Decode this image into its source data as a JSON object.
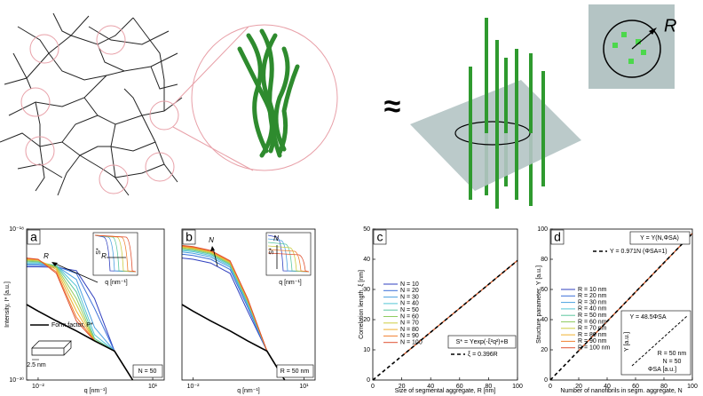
{
  "illustration": {
    "approx": "≈",
    "inset_label": "R"
  },
  "chart_data": [
    {
      "type": "line",
      "panel": "a",
      "log_x": true,
      "log_y": true,
      "x_label": "q [nm⁻¹]",
      "y_label": "Intensity, I* [a.u.]",
      "xlim": [
        0.005,
        20
      ],
      "ylim": [
        1e-30,
        1e-18
      ],
      "xticks": [
        {
          "value": 0.01,
          "label": "10⁻²"
        },
        {
          "value": 10,
          "label": "10¹"
        }
      ],
      "yticks": [
        {
          "value": 1e-30,
          "label": "10⁻³⁰"
        },
        {
          "value": 1e-18,
          "label": "10⁻¹⁸"
        }
      ],
      "x": [
        0.005,
        0.01,
        0.03,
        0.1,
        0.3,
        1,
        3
      ],
      "series": [
        {
          "color": "#2f3fbf",
          "values": [
            1e-21,
            1e-21,
            9e-22,
            5e-22,
            3e-24,
            2e-28,
            1e-30
          ]
        },
        {
          "color": "#3a6fd8",
          "values": [
            1.3e-21,
            1.3e-21,
            1.1e-21,
            3e-22,
            5e-25,
            2e-28,
            1e-30
          ]
        },
        {
          "color": "#4aa0e0",
          "values": [
            1.6e-21,
            1.6e-21,
            1.2e-21,
            1e-22,
            1.5e-26,
            2e-28,
            1e-30
          ]
        },
        {
          "color": "#52c4d4",
          "values": [
            2e-21,
            2e-21,
            1.3e-21,
            3e-23,
            4e-27,
            2e-28,
            1e-30
          ]
        },
        {
          "color": "#5cc8a0",
          "values": [
            2.5e-21,
            2.4e-21,
            1.2e-21,
            1e-23,
            2e-27,
            2e-28,
            1e-30
          ]
        },
        {
          "color": "#90cc60",
          "values": [
            3e-21,
            2.8e-21,
            1e-21,
            3e-24,
            1.5e-27,
            2e-28,
            1e-30
          ]
        },
        {
          "color": "#cccc40",
          "values": [
            3.5e-21,
            3.2e-21,
            8e-22,
            1e-24,
            1.3e-27,
            2e-28,
            1e-30
          ]
        },
        {
          "color": "#f0b030",
          "values": [
            4e-21,
            3.5e-21,
            6e-22,
            3e-25,
            1.3e-27,
            2e-28,
            1e-30
          ]
        },
        {
          "color": "#f08030",
          "values": [
            4.5e-21,
            3.8e-21,
            4e-22,
            1e-25,
            1.3e-27,
            2e-28,
            1e-30
          ]
        },
        {
          "color": "#e05030",
          "values": [
            5e-21,
            4e-21,
            3e-22,
            5e-26,
            1.3e-27,
            2e-28,
            1e-30
          ]
        },
        {
          "color": "#000000",
          "values": [
            1e-24,
            3e-25,
            5e-26,
            8e-27,
            1.3e-27,
            2e-28,
            1e-30
          ]
        }
      ],
      "annotations": [
        "Form factor, P*",
        "2.5 nm",
        "N = 50",
        "R",
        "S*",
        "q [nm⁻¹]",
        "R"
      ]
    },
    {
      "type": "line",
      "panel": "b",
      "log_x": true,
      "log_y": true,
      "x_label": "q [nm⁻¹]",
      "xlim": [
        0.005,
        20
      ],
      "ylim": [
        1e-30,
        1e-18
      ],
      "xticks": [
        {
          "value": 0.01,
          "label": "10⁻²"
        },
        {
          "value": 10,
          "label": "10¹"
        }
      ],
      "x": [
        0.005,
        0.01,
        0.03,
        0.1,
        0.3,
        1,
        3
      ],
      "series": [
        {
          "color": "#2f3fbf",
          "values": [
            5e-21,
            4e-21,
            2e-21,
            3e-22,
            3e-25,
            2e-28,
            1e-30
          ]
        },
        {
          "color": "#3a6fd8",
          "values": [
            1e-20,
            8e-21,
            4e-21,
            6e-22,
            6e-25,
            2e-28,
            1e-30
          ]
        },
        {
          "color": "#4aa0e0",
          "values": [
            1.5e-20,
            1.2e-20,
            6e-21,
            9e-22,
            9e-25,
            2e-28,
            1e-30
          ]
        },
        {
          "color": "#52c4d4",
          "values": [
            2e-20,
            1.6e-20,
            8e-21,
            1.2e-21,
            1.2e-24,
            2e-28,
            1e-30
          ]
        },
        {
          "color": "#5cc8a0",
          "values": [
            2.5e-20,
            2e-20,
            1e-20,
            1.5e-21,
            1.5e-24,
            2e-28,
            1e-30
          ]
        },
        {
          "color": "#90cc60",
          "values": [
            3e-20,
            2.4e-20,
            1.2e-20,
            1.8e-21,
            1.8e-24,
            2e-28,
            1e-30
          ]
        },
        {
          "color": "#cccc40",
          "values": [
            3.5e-20,
            2.8e-20,
            1.4e-20,
            2.1e-21,
            2.1e-24,
            2e-28,
            1e-30
          ]
        },
        {
          "color": "#f0b030",
          "values": [
            4e-20,
            3.2e-20,
            1.6e-20,
            2.4e-21,
            2.4e-24,
            2e-28,
            1e-30
          ]
        },
        {
          "color": "#f08030",
          "values": [
            4.5e-20,
            3.6e-20,
            1.8e-20,
            2.7e-21,
            2.7e-24,
            2e-28,
            1e-30
          ]
        },
        {
          "color": "#e05030",
          "values": [
            5e-20,
            4e-20,
            2e-20,
            3e-21,
            3e-24,
            2e-28,
            1e-30
          ]
        },
        {
          "color": "#000000",
          "values": [
            1e-24,
            3e-25,
            5e-26,
            8e-27,
            1.3e-27,
            2e-28,
            1e-30
          ]
        }
      ],
      "annotations": [
        "N",
        "R = 50 nm",
        "S*",
        "q [nm⁻¹]",
        "N"
      ]
    },
    {
      "type": "line",
      "panel": "c",
      "x_label": "Size of segmental aggregate, R [nm]",
      "y_label": "Correlation length, ξ [nm]",
      "xlim": [
        0,
        100
      ],
      "ylim": [
        0,
        50
      ],
      "xticks": [
        0,
        20,
        40,
        60,
        80,
        100
      ],
      "yticks": [
        0,
        10,
        20,
        30,
        40,
        50
      ],
      "series": [
        {
          "name": "N = 10",
          "color": "#2f3fbf",
          "x": [
            20,
            100
          ],
          "values": [
            7.92,
            39.6
          ]
        },
        {
          "name": "N = 20",
          "color": "#3a6fd8",
          "x": [
            20,
            100
          ],
          "values": [
            7.92,
            39.6
          ]
        },
        {
          "name": "N = 30",
          "color": "#4aa0e0",
          "x": [
            20,
            100
          ],
          "values": [
            7.92,
            39.6
          ]
        },
        {
          "name": "N = 40",
          "color": "#52c4d4",
          "x": [
            20,
            100
          ],
          "values": [
            7.92,
            39.6
          ]
        },
        {
          "name": "N = 50",
          "color": "#5cc8a0",
          "x": [
            20,
            100
          ],
          "values": [
            7.92,
            39.6
          ]
        },
        {
          "name": "N = 60",
          "color": "#90cc60",
          "x": [
            20,
            100
          ],
          "values": [
            7.92,
            39.6
          ]
        },
        {
          "name": "N = 70",
          "color": "#cccc40",
          "x": [
            20,
            100
          ],
          "values": [
            7.92,
            39.6
          ]
        },
        {
          "name": "N = 80",
          "color": "#f0b030",
          "x": [
            20,
            100
          ],
          "values": [
            7.92,
            39.6
          ]
        },
        {
          "name": "N = 90",
          "color": "#f08030",
          "x": [
            20,
            100
          ],
          "values": [
            7.92,
            39.6
          ]
        },
        {
          "name": "N = 100",
          "color": "#e05030",
          "x": [
            20,
            100
          ],
          "values": [
            7.92,
            39.6
          ]
        },
        {
          "name": "ξ = 0.396R",
          "color": "#000000",
          "dashed": true,
          "x": [
            0,
            100
          ],
          "values": [
            0,
            39.6
          ]
        }
      ],
      "annotations": [
        "S* = Υexp(-ξ²q²)+B"
      ]
    },
    {
      "type": "line",
      "panel": "d",
      "x_label": "Number of nanofibrils in segm. aggregate, N",
      "y_label": "Structure parameter, Υ [a.u.]",
      "xlim": [
        0,
        100
      ],
      "ylim": [
        0,
        100
      ],
      "xticks": [
        0,
        20,
        40,
        60,
        80,
        100
      ],
      "yticks": [
        0,
        20,
        40,
        60,
        80,
        100
      ],
      "series": [
        {
          "name": "R = 10 nm",
          "color": "#2f3fbf",
          "x": [
            20,
            100
          ],
          "values": [
            19.42,
            97.1
          ]
        },
        {
          "name": "R = 20 nm",
          "color": "#3a6fd8",
          "x": [
            20,
            100
          ],
          "values": [
            19.42,
            97.1
          ]
        },
        {
          "name": "R = 30 nm",
          "color": "#4aa0e0",
          "x": [
            20,
            100
          ],
          "values": [
            19.42,
            97.1
          ]
        },
        {
          "name": "R = 40 nm",
          "color": "#52c4d4",
          "x": [
            20,
            100
          ],
          "values": [
            19.42,
            97.1
          ]
        },
        {
          "name": "R = 50 nm",
          "color": "#5cc8a0",
          "x": [
            20,
            100
          ],
          "values": [
            19.42,
            97.1
          ]
        },
        {
          "name": "R = 60 nm",
          "color": "#90cc60",
          "x": [
            20,
            100
          ],
          "values": [
            19.42,
            97.1
          ]
        },
        {
          "name": "R = 70 nm",
          "color": "#cccc40",
          "x": [
            20,
            100
          ],
          "values": [
            19.42,
            97.1
          ]
        },
        {
          "name": "R = 80 nm",
          "color": "#f0b030",
          "x": [
            20,
            100
          ],
          "values": [
            19.42,
            97.1
          ]
        },
        {
          "name": "R = 90 nm",
          "color": "#f08030",
          "x": [
            20,
            100
          ],
          "values": [
            19.42,
            97.1
          ]
        },
        {
          "name": "R = 100 nm",
          "color": "#e05030",
          "x": [
            20,
            100
          ],
          "values": [
            19.42,
            97.1
          ]
        },
        {
          "name": "Υ = 0.971N (ΦSA=1)",
          "color": "#000000",
          "dashed": true,
          "x": [
            0,
            100
          ],
          "values": [
            0,
            97.1
          ]
        }
      ],
      "annotations": [
        "Υ = Υ(N,ΦSA)",
        "Υ = 48.5ΦSA",
        "Υ [a.u.]",
        "R = 50 nm",
        "N = 50",
        "ΦSA [a.u.]"
      ]
    }
  ]
}
